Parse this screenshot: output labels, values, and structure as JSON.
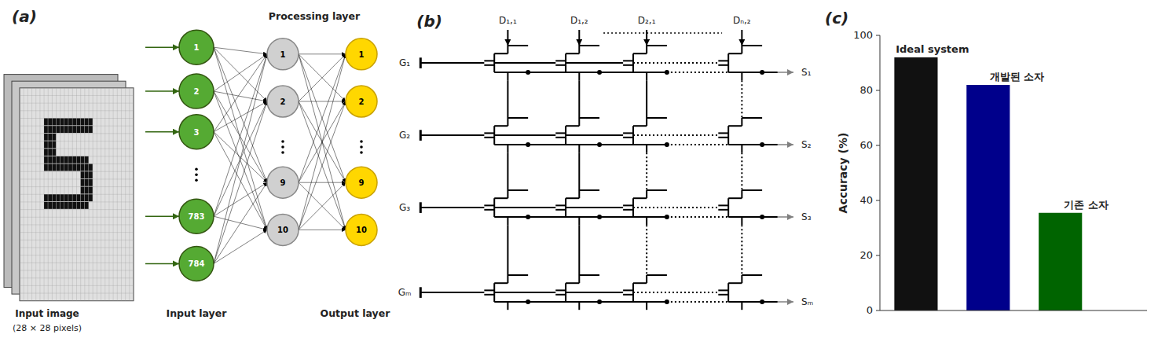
{
  "chart_data": [
    {
      "type": "diagram",
      "title": "(a)",
      "annotations": [
        "Processing layer",
        "Input image",
        "(28 × 28 pixels)",
        "Input layer",
        "Output layer",
        "1",
        "2",
        "3",
        "783",
        "784",
        "1",
        "2",
        "9",
        "10",
        "1",
        "2",
        "9",
        "10"
      ]
    },
    {
      "type": "diagram",
      "title": "(b)",
      "annotations": [
        "G₁",
        "G₂",
        "G₃",
        "Gₘ",
        "S₁",
        "S₂",
        "S₃",
        "Sₘ",
        "D₁,₁",
        "D₁,₂",
        "D₂,₁",
        "Dₙ,₂"
      ]
    },
    {
      "type": "bar",
      "title": "(c)",
      "categories": [
        "Ideal system",
        "개발된 소자",
        "기존 소자"
      ],
      "values": [
        92.0,
        82.0,
        35.5
      ],
      "colors": [
        "#111111",
        "#00008B",
        "#006400"
      ],
      "ylabel": "Accuracy (%)",
      "ylim": [
        0,
        100
      ],
      "yticks": [
        0,
        20,
        40,
        60,
        80,
        100
      ],
      "tick_labels": "y"
    }
  ]
}
